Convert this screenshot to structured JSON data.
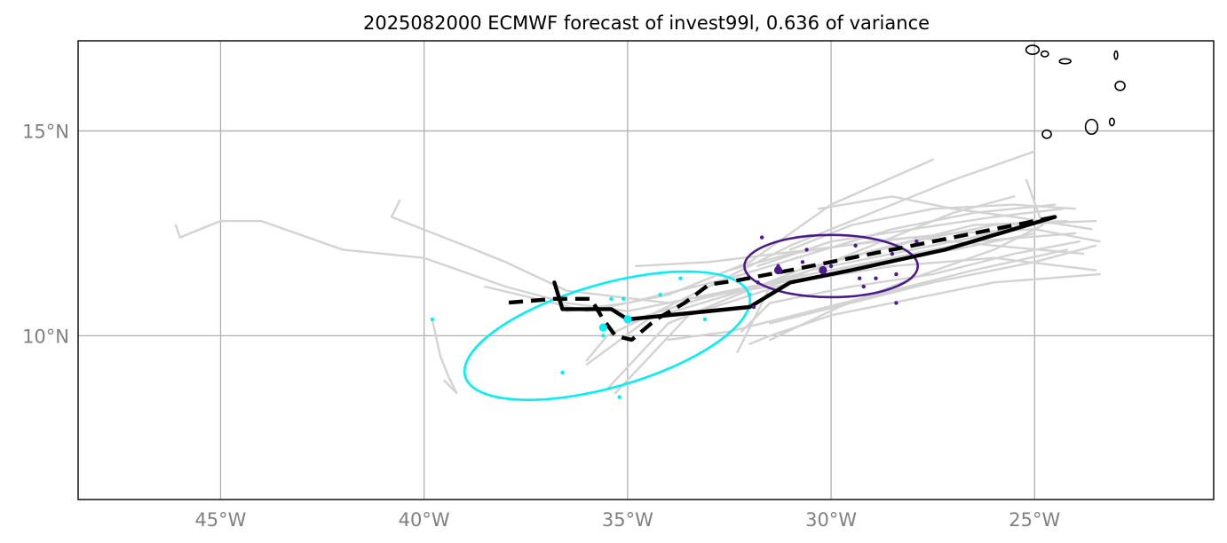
{
  "title": "2025082000 ECMWF forecast of invest99l, 0.636 of variance",
  "chart_data": {
    "type": "map",
    "extent": {
      "lon": [
        -48.5,
        -20.6
      ],
      "lat": [
        6.0,
        17.2
      ]
    },
    "gridlines": {
      "lon": [
        -45,
        -40,
        -35,
        -30,
        -25
      ],
      "lat": [
        10,
        15
      ],
      "lon_labels": [
        "45°W",
        "40°W",
        "35°W",
        "30°W",
        "25°W"
      ],
      "lat_labels": [
        "10°N",
        "15°N"
      ]
    },
    "colors": {
      "ensemble": "#d3d3d3",
      "mean_track": "#000000",
      "cluster_early": "#00f0f8",
      "cluster_late": "#4b1a8c",
      "coast": "#000000"
    },
    "ensemble_tracks": [
      [
        [
          -24.5,
          12.9
        ],
        [
          -26.5,
          12.4
        ],
        [
          -28.5,
          12.0
        ],
        [
          -30.5,
          11.6
        ],
        [
          -32.5,
          11.0
        ],
        [
          -34.5,
          10.4
        ],
        [
          -36.0,
          9.3
        ]
      ],
      [
        [
          -23.5,
          12.8
        ],
        [
          -26.0,
          12.7
        ],
        [
          -28.0,
          12.3
        ],
        [
          -30.0,
          11.8
        ],
        [
          -31.5,
          11.2
        ],
        [
          -33.5,
          10.9
        ],
        [
          -35.0,
          10.6
        ],
        [
          -36.5,
          10.8
        ],
        [
          -38.0,
          11.2
        ],
        [
          -40.0,
          11.9
        ],
        [
          -42.0,
          12.1
        ],
        [
          -44.0,
          12.8
        ],
        [
          -45.0,
          12.8
        ],
        [
          -46.0,
          12.4
        ],
        [
          -46.1,
          12.7
        ]
      ],
      [
        [
          -24.0,
          12.5
        ],
        [
          -26.5,
          12.3
        ],
        [
          -28.5,
          11.9
        ],
        [
          -30.5,
          11.4
        ],
        [
          -32.0,
          11.2
        ],
        [
          -34.0,
          10.8
        ],
        [
          -36.5,
          11.1
        ],
        [
          -38.0,
          11.8
        ],
        [
          -39.0,
          12.2
        ],
        [
          -40.8,
          12.9
        ],
        [
          -40.6,
          13.3
        ]
      ],
      [
        [
          -23.4,
          12.3
        ],
        [
          -25.0,
          12.6
        ],
        [
          -27.0,
          12.5
        ],
        [
          -29.0,
          12.3
        ],
        [
          -31.0,
          12.0
        ],
        [
          -32.5,
          11.6
        ]
      ],
      [
        [
          -23.8,
          12.0
        ],
        [
          -26.0,
          12.2
        ],
        [
          -28.0,
          12.4
        ],
        [
          -30.5,
          12.1
        ],
        [
          -33.0,
          11.8
        ],
        [
          -34.8,
          11.7
        ]
      ],
      [
        [
          -23.5,
          11.6
        ],
        [
          -26.0,
          11.9
        ],
        [
          -28.5,
          11.7
        ],
        [
          -31.0,
          11.3
        ],
        [
          -33.5,
          10.5
        ],
        [
          -35.3,
          8.6
        ]
      ],
      [
        [
          -25.0,
          14.5
        ],
        [
          -27.0,
          13.8
        ],
        [
          -29.0,
          13.0
        ],
        [
          -31.0,
          12.2
        ],
        [
          -33.0,
          11.2
        ],
        [
          -35.5,
          10.0
        ],
        [
          -36.0,
          9.4
        ]
      ],
      [
        [
          -27.5,
          14.3
        ],
        [
          -30.0,
          13.2
        ],
        [
          -32.0,
          11.8
        ],
        [
          -34.0,
          11.0
        ],
        [
          -36.0,
          10.6
        ],
        [
          -38.5,
          11.2
        ]
      ],
      [
        [
          -24.0,
          13.1
        ],
        [
          -25.5,
          13.2
        ],
        [
          -27.5,
          13.1
        ],
        [
          -29.5,
          12.7
        ],
        [
          -31.0,
          12.1
        ]
      ],
      [
        [
          -25.2,
          13.8
        ],
        [
          -24.8,
          12.7
        ],
        [
          -26.0,
          12.1
        ],
        [
          -28.0,
          11.4
        ],
        [
          -29.8,
          10.7
        ],
        [
          -31.5,
          9.9
        ]
      ],
      [
        [
          -24.2,
          12.1
        ],
        [
          -26.5,
          11.6
        ],
        [
          -28.5,
          11.1
        ],
        [
          -30.5,
          10.6
        ],
        [
          -32.5,
          10.1
        ],
        [
          -34.0,
          9.9
        ]
      ],
      [
        [
          -23.5,
          12.2
        ],
        [
          -25.0,
          11.8
        ],
        [
          -27.5,
          11.3
        ],
        [
          -29.5,
          10.8
        ],
        [
          -31.5,
          10.3
        ]
      ],
      [
        [
          -24.3,
          13.1
        ],
        [
          -26.0,
          12.9
        ],
        [
          -28.0,
          12.6
        ],
        [
          -30.0,
          12.3
        ],
        [
          -31.8,
          11.7
        ]
      ],
      [
        [
          -23.6,
          12.6
        ],
        [
          -25.5,
          12.9
        ],
        [
          -27.0,
          13.1
        ],
        [
          -28.5,
          13.4
        ],
        [
          -30.3,
          13.1
        ]
      ],
      [
        [
          -25.5,
          13.4
        ],
        [
          -27.0,
          13.0
        ],
        [
          -28.5,
          12.4
        ],
        [
          -30.0,
          11.8
        ],
        [
          -31.5,
          11.2
        ],
        [
          -32.3,
          9.6
        ]
      ],
      [
        [
          -23.9,
          12.3
        ],
        [
          -25.5,
          12.0
        ],
        [
          -27.5,
          11.5
        ],
        [
          -29.5,
          11.2
        ],
        [
          -31.5,
          10.8
        ],
        [
          -32.2,
          10.1
        ]
      ],
      [
        [
          -23.4,
          11.5
        ],
        [
          -26.0,
          11.3
        ],
        [
          -28.0,
          10.9
        ],
        [
          -30.0,
          10.5
        ],
        [
          -31.5,
          10.0
        ],
        [
          -32.0,
          9.8
        ]
      ],
      [
        [
          -24.2,
          12.8
        ],
        [
          -26.5,
          12.7
        ],
        [
          -28.5,
          12.2
        ],
        [
          -30.8,
          11.6
        ],
        [
          -32.3,
          11.0
        ],
        [
          -34.0,
          10.3
        ],
        [
          -35.5,
          8.7
        ]
      ],
      [
        [
          -24.5,
          13.2
        ],
        [
          -26.5,
          13.0
        ],
        [
          -28.5,
          12.6
        ],
        [
          -30.5,
          12.0
        ],
        [
          -32.5,
          11.4
        ],
        [
          -35.0,
          10.8
        ],
        [
          -36.5,
          10.6
        ]
      ],
      [
        [
          -25.0,
          12.5
        ],
        [
          -27.0,
          12.1
        ],
        [
          -29.0,
          11.8
        ],
        [
          -31.0,
          11.4
        ],
        [
          -33.2,
          10.9
        ],
        [
          -34.5,
          10.5
        ],
        [
          -35.0,
          10.3
        ]
      ],
      [
        [
          -39.8,
          10.4
        ],
        [
          -39.6,
          9.5
        ],
        [
          -39.4,
          9.0
        ],
        [
          -39.2,
          8.6
        ],
        [
          -39.5,
          8.9
        ]
      ]
    ],
    "mean_track_solid": [
      [
        -24.5,
        12.9
      ],
      [
        -27.2,
        12.1
      ],
      [
        -29.5,
        11.6
      ],
      [
        -31.0,
        11.3
      ],
      [
        -32.0,
        10.7
      ],
      [
        -33.5,
        10.55
      ],
      [
        -35.0,
        10.4
      ],
      [
        -35.4,
        10.65
      ],
      [
        -36.0,
        10.65
      ],
      [
        -36.6,
        10.65
      ],
      [
        -36.8,
        11.3
      ]
    ],
    "mean_track_dashed": [
      [
        -24.5,
        12.9
      ],
      [
        -27.0,
        12.4
      ],
      [
        -29.0,
        12.0
      ],
      [
        -31.0,
        11.6
      ],
      [
        -32.3,
        11.35
      ],
      [
        -33.0,
        11.25
      ],
      [
        -33.6,
        10.8
      ],
      [
        -34.3,
        10.4
      ],
      [
        -34.9,
        9.9
      ],
      [
        -35.3,
        10.0
      ],
      [
        -35.6,
        10.4
      ],
      [
        -35.9,
        10.9
      ],
      [
        -36.8,
        10.9
      ],
      [
        -38.0,
        10.8
      ]
    ],
    "clusters": [
      {
        "name": "early",
        "center": [
          -35.0,
          10.4
        ],
        "mean_point": [
          -35.6,
          10.2
        ],
        "ellipse": {
          "center": [
            -35.5,
            10.0
          ],
          "semi_major_deg": 3.63,
          "semi_minor_deg": 1.26,
          "angle_deg": 16
        },
        "points": [
          [
            -39.8,
            10.4
          ],
          [
            -36.6,
            9.1
          ],
          [
            -35.2,
            8.5
          ],
          [
            -35.6,
            10.0
          ],
          [
            -35.4,
            10.9
          ],
          [
            -34.2,
            11.0
          ],
          [
            -33.7,
            11.4
          ],
          [
            -33.1,
            10.4
          ],
          [
            -32.0,
            11.0
          ],
          [
            -35.1,
            10.9
          ]
        ]
      },
      {
        "name": "late",
        "center": [
          -30.2,
          11.6
        ],
        "mean_point": [
          -31.3,
          11.6
        ],
        "ellipse": {
          "center": [
            -30.0,
            11.7
          ],
          "semi_major_deg": 2.13,
          "semi_minor_deg": 0.76,
          "angle_deg": 0
        },
        "points": [
          [
            -31.7,
            12.4
          ],
          [
            -30.6,
            12.1
          ],
          [
            -29.4,
            12.2
          ],
          [
            -28.5,
            12.0
          ],
          [
            -27.9,
            12.3
          ],
          [
            -31.8,
            11.3
          ],
          [
            -30.0,
            11.7
          ],
          [
            -29.3,
            11.4
          ],
          [
            -28.9,
            11.4
          ],
          [
            -28.4,
            11.5
          ],
          [
            -29.2,
            11.2
          ],
          [
            -31.9,
            10.7
          ],
          [
            -28.4,
            10.8
          ],
          [
            -30.7,
            11.8
          ],
          [
            -31.3,
            11.7
          ]
        ]
      }
    ],
    "land_features": [
      {
        "name": "island",
        "center": [
          -25.05,
          16.98
        ],
        "rx": 0.16,
        "ry": 0.11
      },
      {
        "name": "island",
        "center": [
          -24.75,
          16.88
        ],
        "rx": 0.09,
        "ry": 0.07
      },
      {
        "name": "island",
        "center": [
          -24.25,
          16.7
        ],
        "rx": 0.14,
        "ry": 0.06
      },
      {
        "name": "island",
        "center": [
          -23.0,
          16.85
        ],
        "rx": 0.04,
        "ry": 0.1
      },
      {
        "name": "island",
        "center": [
          -22.9,
          16.1
        ],
        "rx": 0.12,
        "ry": 0.11
      },
      {
        "name": "island",
        "center": [
          -23.6,
          15.1
        ],
        "rx": 0.15,
        "ry": 0.18
      },
      {
        "name": "island",
        "center": [
          -23.1,
          15.22
        ],
        "rx": 0.06,
        "ry": 0.09
      },
      {
        "name": "island",
        "center": [
          -24.7,
          14.92
        ],
        "rx": 0.11,
        "ry": 0.1
      }
    ]
  }
}
